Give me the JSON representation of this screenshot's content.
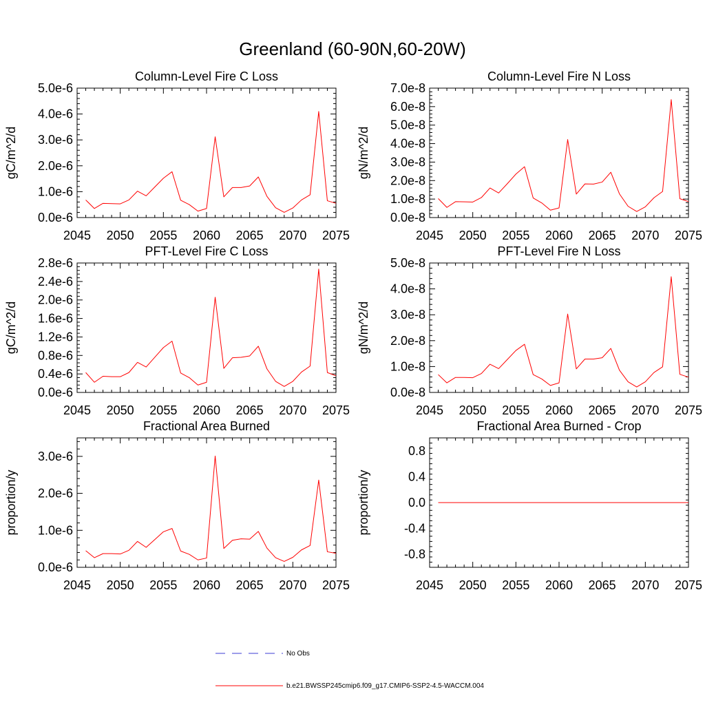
{
  "figure": {
    "title": "Greenland (60-90N,60-20W)"
  },
  "legend": {
    "entries": [
      {
        "label": "No Obs",
        "color": "#3b3bd6",
        "dash": "dashed"
      },
      {
        "label": "b.e21.BWSSP245cmip6.f09_g17.CMIP6-SSP2-4.5-WACCM.004",
        "color": "#ff0000",
        "dash": "solid"
      }
    ]
  },
  "chart_data": [
    {
      "type": "line",
      "title": "Column-Level Fire C Loss",
      "ylabel": "gC/m^2/d",
      "xlim": [
        2045,
        2075
      ],
      "ylim": [
        0,
        5e-06
      ],
      "xticks": [
        "2045",
        "2050",
        "2055",
        "2060",
        "2065",
        "2070",
        "2075"
      ],
      "yticks": [
        {
          "value": 0.0,
          "label": "0.0e-6"
        },
        {
          "value": 1e-06,
          "label": "1.0e-6"
        },
        {
          "value": 2e-06,
          "label": "2.0e-6"
        },
        {
          "value": 3e-06,
          "label": "3.0e-6"
        },
        {
          "value": 4e-06,
          "label": "4.0e-6"
        },
        {
          "value": 5e-06,
          "label": "5.0e-6"
        }
      ],
      "series": [
        {
          "color": "#ff0000",
          "x": [
            2046,
            2047,
            2048,
            2049,
            2050,
            2051,
            2052,
            2053,
            2054,
            2055,
            2056,
            2057,
            2058,
            2059,
            2060,
            2061,
            2062,
            2063,
            2064,
            2065,
            2066,
            2067,
            2068,
            2069,
            2070,
            2071,
            2072,
            2073,
            2074,
            2075
          ],
          "values": [
            6.8e-07,
            3.5e-07,
            5.5e-07,
            5.4e-07,
            5.3e-07,
            6.8e-07,
            1.02e-06,
            8.4e-07,
            1.18e-06,
            1.52e-06,
            1.77e-06,
            6.7e-07,
            5e-07,
            2.5e-07,
            3.5e-07,
            3.12e-06,
            8e-07,
            1.16e-06,
            1.16e-06,
            1.22e-06,
            1.57e-06,
            8.2e-07,
            3.8e-07,
            2e-07,
            3.7e-07,
            6.8e-07,
            8.8e-07,
            4.1e-06,
            6.5e-07,
            5.5e-07
          ]
        }
      ]
    },
    {
      "type": "line",
      "title": "Column-Level Fire N Loss",
      "ylabel": "gN/m^2/d",
      "xlim": [
        2045,
        2075
      ],
      "ylim": [
        0,
        7e-08
      ],
      "xticks": [
        "2045",
        "2050",
        "2055",
        "2060",
        "2065",
        "2070",
        "2075"
      ],
      "yticks": [
        {
          "value": 0.0,
          "label": "0.0e-8"
        },
        {
          "value": 1e-08,
          "label": "1.0e-8"
        },
        {
          "value": 2e-08,
          "label": "2.0e-8"
        },
        {
          "value": 3e-08,
          "label": "3.0e-8"
        },
        {
          "value": 4e-08,
          "label": "4.0e-8"
        },
        {
          "value": 5e-08,
          "label": "5.0e-8"
        },
        {
          "value": 6e-08,
          "label": "6.0e-8"
        },
        {
          "value": 7e-08,
          "label": "7.0e-8"
        }
      ],
      "series": [
        {
          "color": "#ff0000",
          "x": [
            2046,
            2047,
            2048,
            2049,
            2050,
            2051,
            2052,
            2053,
            2054,
            2055,
            2056,
            2057,
            2058,
            2059,
            2060,
            2061,
            2062,
            2063,
            2064,
            2065,
            2066,
            2067,
            2068,
            2069,
            2070,
            2071,
            2072,
            2073,
            2074,
            2075
          ],
          "values": [
            1.03e-08,
            5.5e-09,
            8.6e-09,
            8.5e-09,
            8.4e-09,
            1.08e-08,
            1.6e-08,
            1.33e-08,
            1.83e-08,
            2.35e-08,
            2.75e-08,
            1.06e-08,
            7.9e-09,
            4e-09,
            5.2e-09,
            4.22e-08,
            1.27e-08,
            1.82e-08,
            1.81e-08,
            1.92e-08,
            2.45e-08,
            1.28e-08,
            6.1e-09,
            3.3e-09,
            5.8e-09,
            1.07e-08,
            1.41e-08,
            6.38e-08,
            1.02e-08,
            8.6e-09
          ]
        }
      ]
    },
    {
      "type": "line",
      "title": "PFT-Level Fire C Loss",
      "ylabel": "gC/m^2/d",
      "xlim": [
        2045,
        2075
      ],
      "ylim": [
        0,
        2.8e-06
      ],
      "xticks": [
        "2045",
        "2050",
        "2055",
        "2060",
        "2065",
        "2070",
        "2075"
      ],
      "yticks": [
        {
          "value": 0.0,
          "label": "0.0e-6"
        },
        {
          "value": 4e-07,
          "label": "0.4e-6"
        },
        {
          "value": 8e-07,
          "label": "0.8e-6"
        },
        {
          "value": 1.2e-06,
          "label": "1.2e-6"
        },
        {
          "value": 1.6e-06,
          "label": "1.6e-6"
        },
        {
          "value": 2e-06,
          "label": "2.0e-6"
        },
        {
          "value": 2.4e-06,
          "label": "2.4e-6"
        },
        {
          "value": 2.8e-06,
          "label": "2.8e-6"
        }
      ],
      "series": [
        {
          "color": "#ff0000",
          "x": [
            2046,
            2047,
            2048,
            2049,
            2050,
            2051,
            2052,
            2053,
            2054,
            2055,
            2056,
            2057,
            2058,
            2059,
            2060,
            2061,
            2062,
            2063,
            2064,
            2065,
            2066,
            2067,
            2068,
            2069,
            2070,
            2071,
            2072,
            2073,
            2074,
            2075
          ],
          "values": [
            4.3e-07,
            2.2e-07,
            3.5e-07,
            3.4e-07,
            3.4e-07,
            4.3e-07,
            6.5e-07,
            5.5e-07,
            7.6e-07,
            9.7e-07,
            1.11e-06,
            4.2e-07,
            3.2e-07,
            1.6e-07,
            2.2e-07,
            2.06e-06,
            5.2e-07,
            7.5e-07,
            7.6e-07,
            7.9e-07,
            1e-06,
            5.1e-07,
            2.4e-07,
            1.3e-07,
            2.4e-07,
            4.4e-07,
            5.7e-07,
            2.67e-06,
            4.3e-07,
            3.6e-07
          ]
        }
      ]
    },
    {
      "type": "line",
      "title": "PFT-Level Fire N Loss",
      "ylabel": "gN/m^2/d",
      "xlim": [
        2045,
        2075
      ],
      "ylim": [
        0,
        5e-08
      ],
      "xticks": [
        "2045",
        "2050",
        "2055",
        "2060",
        "2065",
        "2070",
        "2075"
      ],
      "yticks": [
        {
          "value": 0.0,
          "label": "0.0e-8"
        },
        {
          "value": 1e-08,
          "label": "1.0e-8"
        },
        {
          "value": 2e-08,
          "label": "2.0e-8"
        },
        {
          "value": 3e-08,
          "label": "3.0e-8"
        },
        {
          "value": 4e-08,
          "label": "4.0e-8"
        },
        {
          "value": 5e-08,
          "label": "5.0e-8"
        }
      ],
      "series": [
        {
          "color": "#ff0000",
          "x": [
            2046,
            2047,
            2048,
            2049,
            2050,
            2051,
            2052,
            2053,
            2054,
            2055,
            2056,
            2057,
            2058,
            2059,
            2060,
            2061,
            2062,
            2063,
            2064,
            2065,
            2066,
            2067,
            2068,
            2069,
            2070,
            2071,
            2072,
            2073,
            2074,
            2075
          ],
          "values": [
            6.9e-09,
            3.7e-09,
            5.8e-09,
            5.8e-09,
            5.7e-09,
            7.3e-09,
            1.09e-08,
            9.2e-09,
            1.27e-08,
            1.62e-08,
            1.86e-08,
            6.9e-09,
            5.2e-09,
            2.7e-09,
            3.7e-09,
            3.03e-08,
            9.1e-09,
            1.29e-08,
            1.29e-08,
            1.34e-08,
            1.7e-08,
            8.6e-09,
            4.1e-09,
            2.1e-09,
            4.1e-09,
            7.7e-09,
            9.9e-09,
            4.47e-08,
            7e-09,
            5.9e-09
          ]
        }
      ]
    },
    {
      "type": "line",
      "title": "Fractional Area Burned",
      "ylabel": "proportion/y",
      "xlim": [
        2045,
        2075
      ],
      "ylim": [
        0,
        3.5e-06
      ],
      "xticks": [
        "2045",
        "2050",
        "2055",
        "2060",
        "2065",
        "2070",
        "2075"
      ],
      "yticks": [
        {
          "value": 0.0,
          "label": "0.0e-6"
        },
        {
          "value": 1e-06,
          "label": "1.0e-6"
        },
        {
          "value": 2e-06,
          "label": "2.0e-6"
        },
        {
          "value": 3e-06,
          "label": "3.0e-6"
        }
      ],
      "series": [
        {
          "color": "#ff0000",
          "x": [
            2046,
            2047,
            2048,
            2049,
            2050,
            2051,
            2052,
            2053,
            2054,
            2055,
            2056,
            2057,
            2058,
            2059,
            2060,
            2061,
            2062,
            2063,
            2064,
            2065,
            2066,
            2067,
            2068,
            2069,
            2070,
            2071,
            2072,
            2073,
            2074,
            2075
          ],
          "values": [
            4.5e-07,
            2.6e-07,
            3.7e-07,
            3.7e-07,
            3.6e-07,
            4.6e-07,
            7e-07,
            5.4e-07,
            7.5e-07,
            9.6e-07,
            1.05e-06,
            4.4e-07,
            3.5e-07,
            2e-07,
            2.5e-07,
            3.01e-06,
            5.1e-07,
            7.3e-07,
            7.7e-07,
            7.6e-07,
            9.7e-07,
            5.2e-07,
            2.6e-07,
            1.6e-07,
            2.7e-07,
            4.7e-07,
            5.9e-07,
            2.36e-06,
            4.2e-07,
            3.8e-07
          ]
        }
      ]
    },
    {
      "type": "line",
      "title": "Fractional Area Burned - Crop",
      "ylabel": "proportion/y",
      "xlim": [
        2045,
        2075
      ],
      "ylim": [
        -1.0,
        1.0
      ],
      "xticks": [
        "2045",
        "2050",
        "2055",
        "2060",
        "2065",
        "2070",
        "2075"
      ],
      "yticks": [
        {
          "value": -0.8,
          "label": "-0.8"
        },
        {
          "value": -0.4,
          "label": "-0.4"
        },
        {
          "value": 0.0,
          "label": "0.0"
        },
        {
          "value": 0.4,
          "label": "0.4"
        },
        {
          "value": 0.8,
          "label": "0.8"
        }
      ],
      "series": [
        {
          "color": "#ff0000",
          "x": [
            2046,
            2047,
            2048,
            2049,
            2050,
            2051,
            2052,
            2053,
            2054,
            2055,
            2056,
            2057,
            2058,
            2059,
            2060,
            2061,
            2062,
            2063,
            2064,
            2065,
            2066,
            2067,
            2068,
            2069,
            2070,
            2071,
            2072,
            2073,
            2074,
            2075
          ],
          "values": [
            0,
            0,
            0,
            0,
            0,
            0,
            0,
            0,
            0,
            0,
            0,
            0,
            0,
            0,
            0,
            0,
            0,
            0,
            0,
            0,
            0,
            0,
            0,
            0,
            0,
            0,
            0,
            0,
            0,
            0
          ]
        }
      ]
    }
  ]
}
